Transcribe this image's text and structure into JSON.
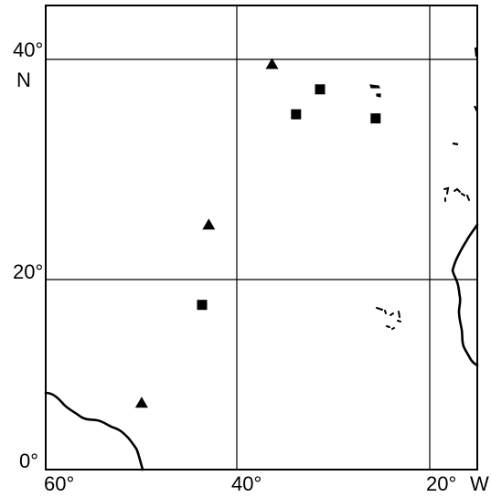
{
  "map": {
    "latitude_labels": [
      "40°",
      "N",
      "20°",
      "0°"
    ],
    "longitude_labels": [
      "60°",
      "40°",
      "20°",
      "W"
    ],
    "extent": {
      "lon_west": -62,
      "lon_east": -17,
      "lat_south": -0.5,
      "lat_north": 44.3
    },
    "graticule": {
      "latitudes": [
        20,
        40
      ],
      "longitudes": [
        -40,
        -20
      ]
    },
    "markers": [
      {
        "shape": "triangle",
        "lon": -38.4,
        "lat": 38.7
      },
      {
        "shape": "square",
        "lon": -35.9,
        "lat": 33.8
      },
      {
        "shape": "square",
        "lon": -33.4,
        "lat": 36.2
      },
      {
        "shape": "square",
        "lon": -27.6,
        "lat": 33.4
      },
      {
        "shape": "triangle",
        "lon": -45.0,
        "lat": 23.2
      },
      {
        "shape": "square",
        "lon": -45.7,
        "lat": 15.4
      },
      {
        "shape": "triangle",
        "lon": -52.0,
        "lat": 6.0
      }
    ],
    "colors": {
      "ink": "#000000",
      "background": "#ffffff"
    }
  }
}
